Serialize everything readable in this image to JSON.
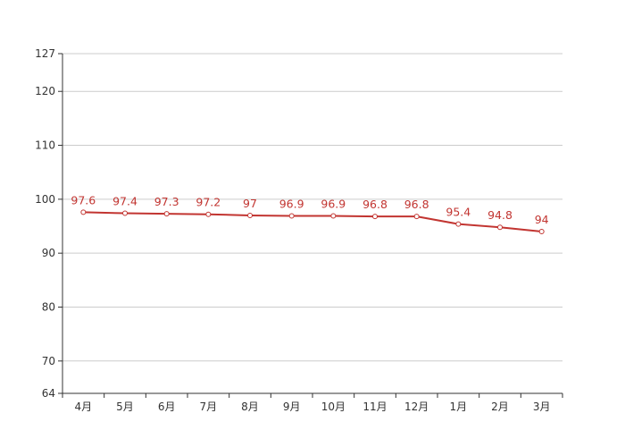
{
  "chart_data": {
    "type": "line",
    "categories": [
      "4月",
      "5月",
      "6月",
      "7月",
      "8月",
      "9月",
      "10月",
      "11月",
      "12月",
      "1月",
      "2月",
      "3月"
    ],
    "series": [
      {
        "values": [
          97.6,
          97.4,
          97.3,
          97.2,
          97,
          96.9,
          96.9,
          96.8,
          96.8,
          95.4,
          94.8,
          94
        ]
      }
    ],
    "ylim": [
      64,
      127
    ],
    "yticks": [
      64,
      70,
      80,
      90,
      100,
      110,
      120,
      127
    ],
    "grid": true,
    "legend": "none",
    "data_labels": true,
    "colors": {
      "line": "#c23531",
      "grid": "#cccccc",
      "axis": "#333333",
      "label": "#c23531"
    }
  }
}
